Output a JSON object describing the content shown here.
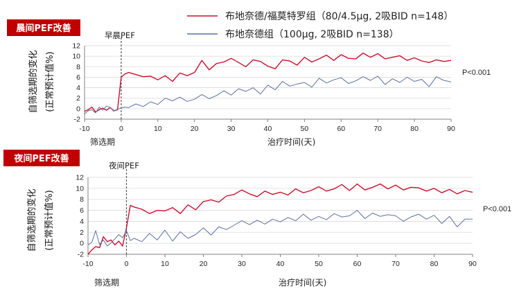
{
  "legend": {
    "series_a": "布地奈德/福莫特罗组（80/4.5μg, 2吸BID n=148）",
    "series_b": "布地奈德组（100μg, 2吸BID n=138）"
  },
  "colors": {
    "series_a": "#c8102e",
    "series_b": "#5b6fa0",
    "badge": "#c00000",
    "axis": "#808080"
  },
  "panels": [
    {
      "badge": "晨间PEF改善",
      "ylabel_line1": "自筛选期的变化",
      "ylabel_line2": "(正常预计值%)",
      "marker_label": "早晨PEF",
      "screening_label": "筛选期",
      "xlabel": "治疗时间(天)",
      "pvalue": "P<0.001"
    },
    {
      "badge": "夜间PEF改善",
      "ylabel_line1": "自筛选期的变化",
      "ylabel_line2": "(正常预计值%)",
      "marker_label": "夜间PEF",
      "screening_label": "筛选期",
      "xlabel": "治疗时间(天)",
      "pvalue": "P<0.001"
    }
  ],
  "chart_data": [
    {
      "type": "line",
      "title": "晨间PEF改善",
      "xlabel": "治疗时间(天)",
      "ylabel": "自筛选期的变化 (正常预计值%)",
      "xlim": [
        -10,
        90
      ],
      "ylim": [
        -2,
        12
      ],
      "xticks": [
        -10,
        0,
        10,
        20,
        30,
        40,
        50,
        60,
        70,
        80,
        90
      ],
      "yticks": [
        -2,
        0,
        2,
        4,
        6,
        8,
        10,
        12
      ],
      "grid": true,
      "legend": "top-right",
      "vline_x": 0,
      "series": [
        {
          "name": "布地奈德/福莫特罗组（80/4.5μg, 2吸BID n=148）",
          "x": [
            -10,
            -9,
            -8,
            -7,
            -6,
            -5,
            -4,
            -3,
            -2,
            -1,
            0,
            1,
            2,
            4,
            6,
            8,
            10,
            12,
            14,
            16,
            18,
            20,
            22,
            24,
            26,
            28,
            30,
            32,
            34,
            36,
            38,
            40,
            42,
            44,
            46,
            48,
            50,
            52,
            54,
            56,
            58,
            60,
            62,
            64,
            66,
            68,
            70,
            72,
            74,
            76,
            78,
            80,
            82,
            84,
            86,
            88,
            90
          ],
          "y": [
            -0.5,
            -0.2,
            0.3,
            -0.6,
            -0.2,
            0.1,
            -0.3,
            0.2,
            -0.4,
            -0.2,
            6.0,
            6.6,
            6.9,
            6.5,
            6.1,
            6.2,
            5.5,
            6.3,
            5.2,
            6.8,
            6.3,
            6.9,
            9.2,
            7.4,
            8.6,
            8.9,
            9.6,
            8.8,
            8.0,
            9.3,
            9.0,
            8.1,
            7.6,
            9.3,
            9.1,
            8.3,
            9.8,
            8.9,
            9.5,
            10.2,
            9.2,
            10.3,
            9.6,
            9.5,
            10.6,
            9.8,
            10.5,
            9.5,
            9.8,
            10.1,
            9.2,
            9.7,
            9.1,
            8.8,
            9.3,
            9.0,
            9.2
          ]
        },
        {
          "name": "布地奈德组（100μg, 2吸BID n=138）",
          "x": [
            -10,
            -9,
            -8,
            -7,
            -6,
            -5,
            -4,
            -3,
            -2,
            -1,
            0,
            1,
            2,
            4,
            6,
            8,
            10,
            12,
            14,
            16,
            18,
            20,
            22,
            24,
            26,
            28,
            30,
            32,
            34,
            36,
            38,
            40,
            42,
            44,
            46,
            48,
            50,
            52,
            54,
            56,
            58,
            60,
            62,
            64,
            66,
            68,
            70,
            72,
            74,
            76,
            78,
            80,
            82,
            84,
            86,
            88,
            90
          ],
          "y": [
            -1.0,
            -0.4,
            -0.2,
            -0.8,
            0.3,
            -0.3,
            0.5,
            0.2,
            -0.5,
            -0.1,
            0.1,
            0.3,
            0.2,
            0.9,
            0.4,
            1.3,
            0.8,
            2.0,
            1.5,
            2.2,
            1.4,
            1.8,
            2.7,
            1.9,
            2.5,
            3.4,
            2.6,
            3.8,
            3.3,
            4.0,
            2.8,
            4.5,
            3.6,
            5.2,
            4.3,
            4.7,
            5.0,
            4.1,
            5.8,
            4.9,
            5.5,
            5.9,
            4.8,
            5.3,
            6.1,
            5.4,
            6.2,
            4.6,
            5.7,
            5.0,
            6.0,
            5.2,
            5.6,
            4.2,
            6.1,
            5.4,
            5.1
          ]
        }
      ]
    },
    {
      "type": "line",
      "title": "夜间PEF改善",
      "xlabel": "治疗时间(天)",
      "ylabel": "自筛选期的变化 (正常预计值%)",
      "xlim": [
        -10,
        90
      ],
      "ylim": [
        -2,
        12
      ],
      "xticks": [
        -10,
        0,
        10,
        20,
        30,
        40,
        50,
        60,
        70,
        80,
        90
      ],
      "yticks": [
        -2,
        0,
        2,
        4,
        6,
        8,
        10,
        12
      ],
      "grid": true,
      "legend": "top-right",
      "vline_x": 0,
      "series": [
        {
          "name": "布地奈德/福莫特罗组（80/4.5μg, 2吸BID n=148）",
          "x": [
            -10,
            -9,
            -8,
            -7,
            -6,
            -5,
            -4,
            -3,
            -2,
            -1,
            0,
            1,
            2,
            4,
            6,
            8,
            10,
            12,
            14,
            16,
            18,
            20,
            22,
            24,
            26,
            28,
            30,
            32,
            34,
            36,
            38,
            40,
            42,
            44,
            46,
            48,
            50,
            52,
            54,
            56,
            58,
            60,
            62,
            64,
            66,
            68,
            70,
            72,
            74,
            76,
            78,
            80,
            82,
            84,
            86,
            88,
            90
          ],
          "y": [
            -2.0,
            -1.2,
            -0.6,
            -0.8,
            1.2,
            0.3,
            0.6,
            -0.3,
            0.4,
            -0.5,
            2.8,
            6.9,
            6.6,
            6.2,
            5.4,
            6.0,
            5.9,
            6.5,
            5.4,
            7.0,
            6.1,
            7.6,
            7.9,
            7.5,
            8.6,
            8.9,
            9.7,
            9.0,
            8.5,
            9.5,
            8.9,
            9.3,
            8.8,
            9.9,
            9.2,
            9.6,
            10.3,
            9.5,
            9.9,
            10.7,
            9.6,
            10.8,
            9.7,
            10.2,
            10.8,
            9.9,
            10.6,
            9.7,
            10.2,
            10.1,
            9.5,
            10.0,
            9.2,
            9.8,
            9.0,
            9.6,
            9.3
          ]
        },
        {
          "name": "布地奈德组（100μg, 2吸BID n=138）",
          "x": [
            -10,
            -9,
            -8,
            -7,
            -6,
            -5,
            -4,
            -3,
            -2,
            -1,
            0,
            1,
            2,
            4,
            6,
            8,
            10,
            12,
            14,
            16,
            18,
            20,
            22,
            24,
            26,
            28,
            30,
            32,
            34,
            36,
            38,
            40,
            42,
            44,
            46,
            48,
            50,
            52,
            54,
            56,
            58,
            60,
            62,
            64,
            66,
            68,
            70,
            72,
            74,
            76,
            78,
            80,
            82,
            84,
            86,
            88,
            90
          ],
          "y": [
            -0.3,
            0.2,
            2.3,
            -0.2,
            0.6,
            -0.5,
            0.1,
            0.8,
            1.6,
            1.0,
            2.3,
            0.5,
            0.9,
            0.3,
            1.8,
            0.6,
            2.4,
            0.4,
            2.1,
            0.9,
            1.6,
            2.8,
            1.5,
            3.0,
            2.5,
            3.3,
            4.1,
            3.4,
            4.2,
            3.5,
            4.4,
            3.9,
            4.7,
            4.1,
            5.3,
            4.2,
            4.9,
            4.3,
            5.4,
            4.8,
            5.0,
            6.0,
            4.5,
            5.5,
            4.9,
            5.2,
            5.0,
            4.0,
            4.8,
            5.3,
            4.4,
            5.1,
            3.6,
            4.9,
            3.0,
            4.4,
            4.4
          ]
        }
      ]
    }
  ]
}
